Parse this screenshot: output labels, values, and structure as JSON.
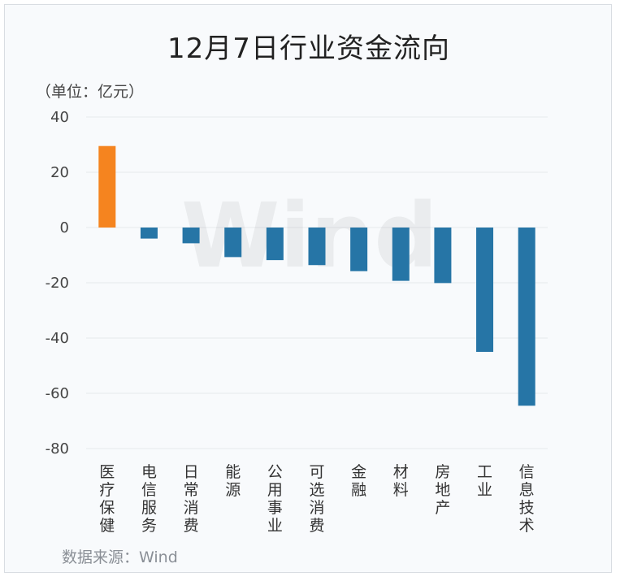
{
  "chart_data": {
    "type": "bar",
    "title": "12月7日行业资金流向",
    "unit_label": "（单位：亿元）",
    "source": "数据来源：Wind",
    "watermark": "Wind",
    "categories": [
      "医疗保健",
      "电信服务",
      "日常消费",
      "能源",
      "公用事业",
      "可选消费",
      "金融",
      "材料",
      "房地产",
      "工业",
      "信息技术"
    ],
    "values": [
      29.5,
      -4,
      -5.7,
      -10.7,
      -11.8,
      -13.6,
      -15.8,
      -19.3,
      -20.1,
      -45,
      -64.5
    ],
    "ylim": [
      -80,
      40
    ],
    "yticks": [
      40,
      20,
      0,
      -20,
      -40,
      -60,
      -80
    ],
    "grid": true,
    "colors": {
      "positive": "#f5841f",
      "negative": "#2675a6",
      "grid": "#e6e9ed"
    }
  }
}
